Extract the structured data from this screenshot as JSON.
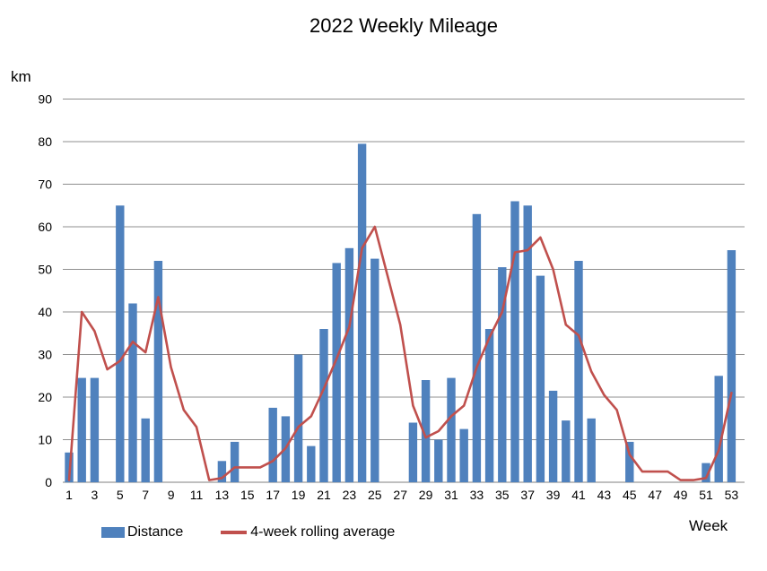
{
  "title": "2022 Weekly Mileage",
  "y_unit_label": "km",
  "x_axis_label": "Week",
  "legend": {
    "distance_label": "Distance",
    "rolling_label": "4-week rolling average"
  },
  "colors": {
    "bar": "#4F81BD",
    "line": "#C0504D",
    "grid": "#8F8F8F",
    "axis": "#7F7F7F",
    "text": "#000000"
  },
  "chart_data": {
    "type": "bar",
    "title": "2022 Weekly Mileage",
    "xlabel": "Week",
    "ylabel": "km",
    "ylim": [
      0,
      90
    ],
    "ytick_step": 10,
    "grid": "horizontal-only",
    "legend_position": "bottom-left",
    "x_tick_labels": [
      "1",
      "3",
      "5",
      "7",
      "9",
      "11",
      "13",
      "15",
      "17",
      "19",
      "21",
      "23",
      "25",
      "27",
      "29",
      "31",
      "33",
      "35",
      "37",
      "39",
      "41",
      "43",
      "45",
      "47",
      "49",
      "51",
      "53"
    ],
    "weeks": [
      1,
      2,
      3,
      4,
      5,
      6,
      7,
      8,
      9,
      10,
      11,
      12,
      13,
      14,
      15,
      16,
      17,
      18,
      19,
      20,
      21,
      22,
      23,
      24,
      25,
      26,
      27,
      28,
      29,
      30,
      31,
      32,
      33,
      34,
      35,
      36,
      37,
      38,
      39,
      40,
      41,
      42,
      43,
      44,
      45,
      46,
      47,
      48,
      49,
      50,
      51,
      52,
      53
    ],
    "series": [
      {
        "name": "Distance",
        "type": "bar",
        "color": "#4F81BD",
        "values": [
          7,
          24.5,
          24.5,
          0,
          65,
          42,
          15,
          52,
          0,
          0,
          0,
          0,
          5,
          9.5,
          0,
          0,
          17.5,
          15.5,
          30,
          8.5,
          36,
          51.5,
          55,
          79.5,
          52.5,
          0,
          0,
          14,
          24,
          10,
          24.5,
          12.5,
          63,
          36,
          50.5,
          66,
          65,
          48.5,
          21.5,
          14.5,
          52,
          15,
          0,
          0,
          9.5,
          0,
          0,
          0,
          0,
          0,
          4.5,
          25,
          54.5
        ]
      },
      {
        "name": "4-week rolling average",
        "type": "line",
        "color": "#C0504D",
        "values": [
          0.5,
          40,
          35.5,
          26.5,
          28.5,
          33,
          30.5,
          43.5,
          27,
          17,
          13,
          0.5,
          1,
          3.5,
          3.5,
          3.5,
          5,
          8,
          13,
          15.5,
          22,
          29,
          36.5,
          55,
          60,
          48.5,
          37,
          18,
          10.5,
          12,
          15.5,
          18,
          27,
          34,
          40,
          54,
          54.5,
          57.5,
          50,
          37,
          34.5,
          26,
          20.5,
          17,
          6.5,
          2.5,
          2.5,
          2.5,
          0.5,
          0.5,
          1,
          7.5,
          21
        ]
      }
    ]
  }
}
